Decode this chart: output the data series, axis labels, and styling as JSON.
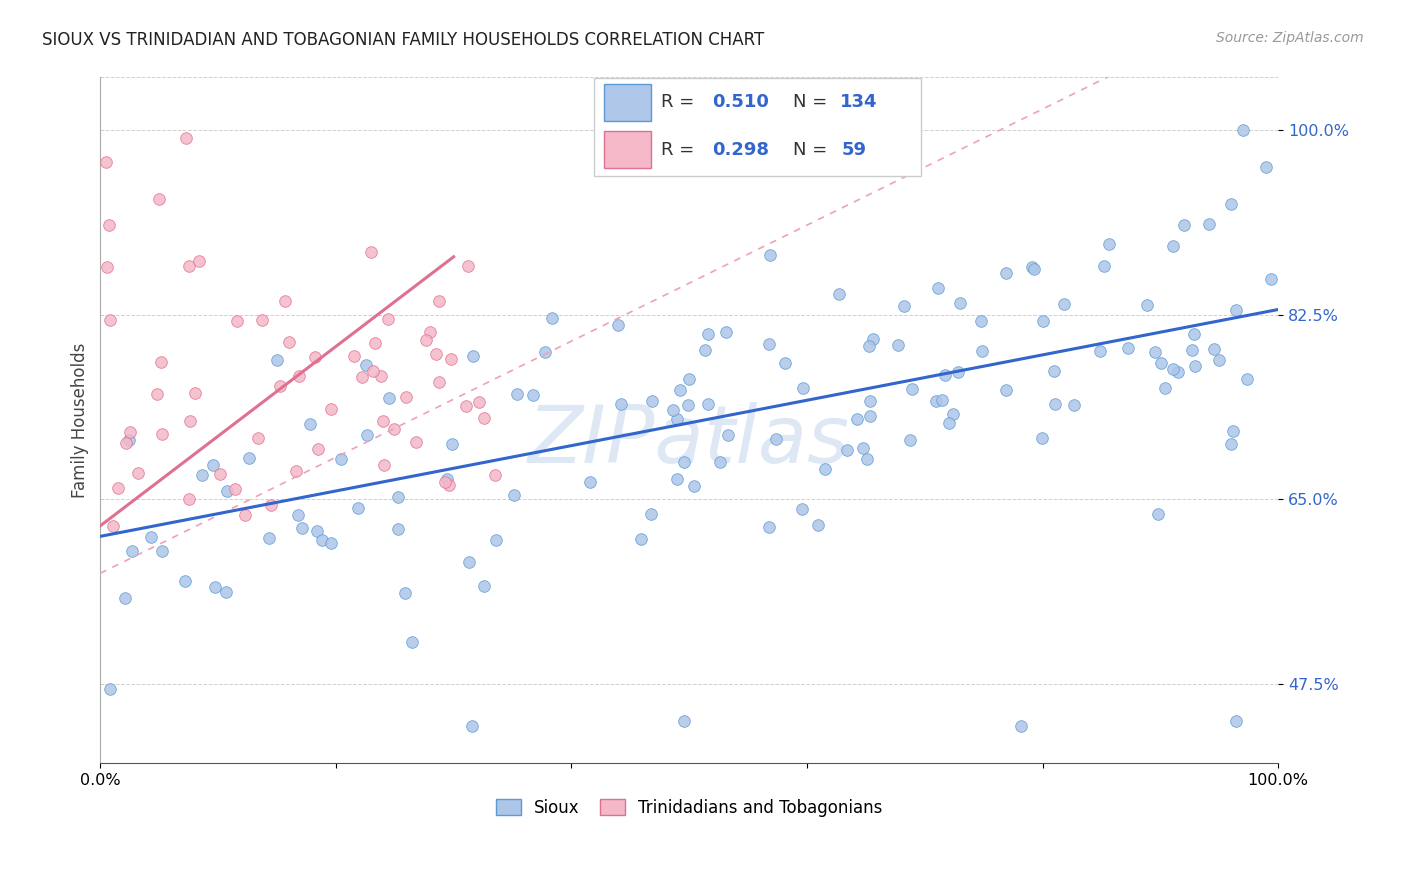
{
  "title": "SIOUX VS TRINIDADIAN AND TOBAGONIAN FAMILY HOUSEHOLDS CORRELATION CHART",
  "source": "Source: ZipAtlas.com",
  "ylabel": "Family Households",
  "y_ticks": [
    0.475,
    0.65,
    0.825,
    1.0
  ],
  "y_tick_labels": [
    "47.5%",
    "65.0%",
    "82.5%",
    "100.0%"
  ],
  "xlim": [
    0.0,
    1.0
  ],
  "ylim": [
    0.4,
    1.05
  ],
  "sioux_R": 0.51,
  "sioux_N": 134,
  "tnt_R": 0.298,
  "tnt_N": 59,
  "sioux_dot_color": "#aec6e8",
  "sioux_edge_color": "#5b9bd5",
  "tnt_dot_color": "#f4b8c8",
  "tnt_edge_color": "#e07090",
  "sioux_line_color": "#3366cc",
  "tnt_line_color": "#e07090",
  "tnt_dash_color": "#f0a0b8",
  "legend_label_sioux": "Sioux",
  "legend_label_tnt": "Trinidadians and Tobagonians",
  "watermark_text": "ZIPatlas",
  "watermark_color": "#aec6e8",
  "label_color": "#3366cc",
  "title_color": "#222222",
  "source_color": "#999999",
  "sioux_slope": 0.215,
  "sioux_intercept": 0.615,
  "tnt_solid_slope": 0.85,
  "tnt_solid_intercept": 0.625,
  "tnt_dash_slope": 0.55,
  "tnt_dash_intercept": 0.58
}
